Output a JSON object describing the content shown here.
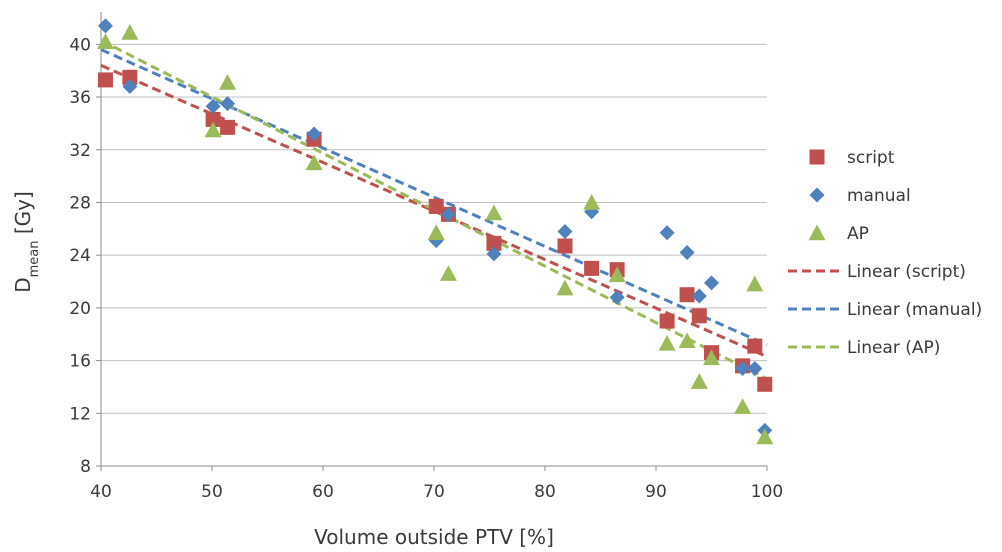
{
  "chart_data": {
    "type": "scatter",
    "xlabel": "Volume outside PTV [%]",
    "ylabel_main": "D",
    "ylabel_sub": "mean",
    "ylabel_unit": " [Gy]",
    "xlim": [
      40,
      100
    ],
    "ylim": [
      8,
      42
    ],
    "xticks": [
      40,
      50,
      60,
      70,
      80,
      90,
      100
    ],
    "yticks": [
      8,
      12,
      16,
      20,
      24,
      28,
      32,
      36,
      40
    ],
    "grid": "horizontal",
    "legend_position": "right",
    "series": [
      {
        "name": "script",
        "marker": "square",
        "color": "#c0504d",
        "points": [
          [
            40.4,
            37.3
          ],
          [
            42.6,
            37.5
          ],
          [
            50.1,
            34.3
          ],
          [
            51.4,
            33.7
          ],
          [
            59.2,
            32.8
          ],
          [
            70.2,
            27.7
          ],
          [
            71.3,
            27.1
          ],
          [
            75.4,
            24.9
          ],
          [
            81.8,
            24.7
          ],
          [
            84.2,
            23.0
          ],
          [
            86.5,
            22.9
          ],
          [
            91.0,
            19.0
          ],
          [
            92.8,
            21.0
          ],
          [
            93.9,
            19.4
          ],
          [
            95.0,
            16.6
          ],
          [
            97.8,
            15.6
          ],
          [
            98.9,
            17.1
          ],
          [
            99.8,
            14.2
          ]
        ]
      },
      {
        "name": "manual",
        "marker": "diamond",
        "color": "#4f81bd",
        "points": [
          [
            40.4,
            41.4
          ],
          [
            42.6,
            36.8
          ],
          [
            50.1,
            35.3
          ],
          [
            51.4,
            35.5
          ],
          [
            59.2,
            33.2
          ],
          [
            70.2,
            25.1
          ],
          [
            71.3,
            27.1
          ],
          [
            75.4,
            24.1
          ],
          [
            81.8,
            25.8
          ],
          [
            84.2,
            27.3
          ],
          [
            86.5,
            20.8
          ],
          [
            91.0,
            25.7
          ],
          [
            92.8,
            24.2
          ],
          [
            93.9,
            20.9
          ],
          [
            95.0,
            21.9
          ],
          [
            97.8,
            15.4
          ],
          [
            98.9,
            15.4
          ],
          [
            99.8,
            10.7
          ]
        ]
      },
      {
        "name": "AP",
        "marker": "triangle",
        "color": "#9bbb59",
        "points": [
          [
            40.4,
            40.2
          ],
          [
            42.6,
            40.9
          ],
          [
            50.1,
            33.5
          ],
          [
            51.4,
            37.1
          ],
          [
            59.2,
            31.0
          ],
          [
            70.2,
            25.7
          ],
          [
            71.3,
            22.6
          ],
          [
            75.4,
            27.2
          ],
          [
            81.8,
            21.5
          ],
          [
            84.2,
            28.0
          ],
          [
            86.5,
            22.5
          ],
          [
            91.0,
            17.3
          ],
          [
            92.8,
            17.5
          ],
          [
            93.9,
            14.4
          ],
          [
            95.0,
            16.2
          ],
          [
            97.8,
            12.5
          ],
          [
            98.9,
            21.8
          ],
          [
            99.8,
            10.2
          ]
        ]
      }
    ],
    "trendlines": [
      {
        "name": "Linear (script)",
        "type": "linear",
        "color": "#c0504d",
        "x": [
          40,
          100
        ],
        "y": [
          38.4,
          16.3
        ]
      },
      {
        "name": "Linear (manual)",
        "type": "linear",
        "color": "#4f81bd",
        "x": [
          40,
          100
        ],
        "y": [
          39.6,
          17.2
        ]
      },
      {
        "name": "Linear (AP)",
        "type": "linear",
        "color": "#9bbb59",
        "x": [
          40,
          100
        ],
        "y": [
          40.3,
          14.6
        ]
      }
    ]
  }
}
